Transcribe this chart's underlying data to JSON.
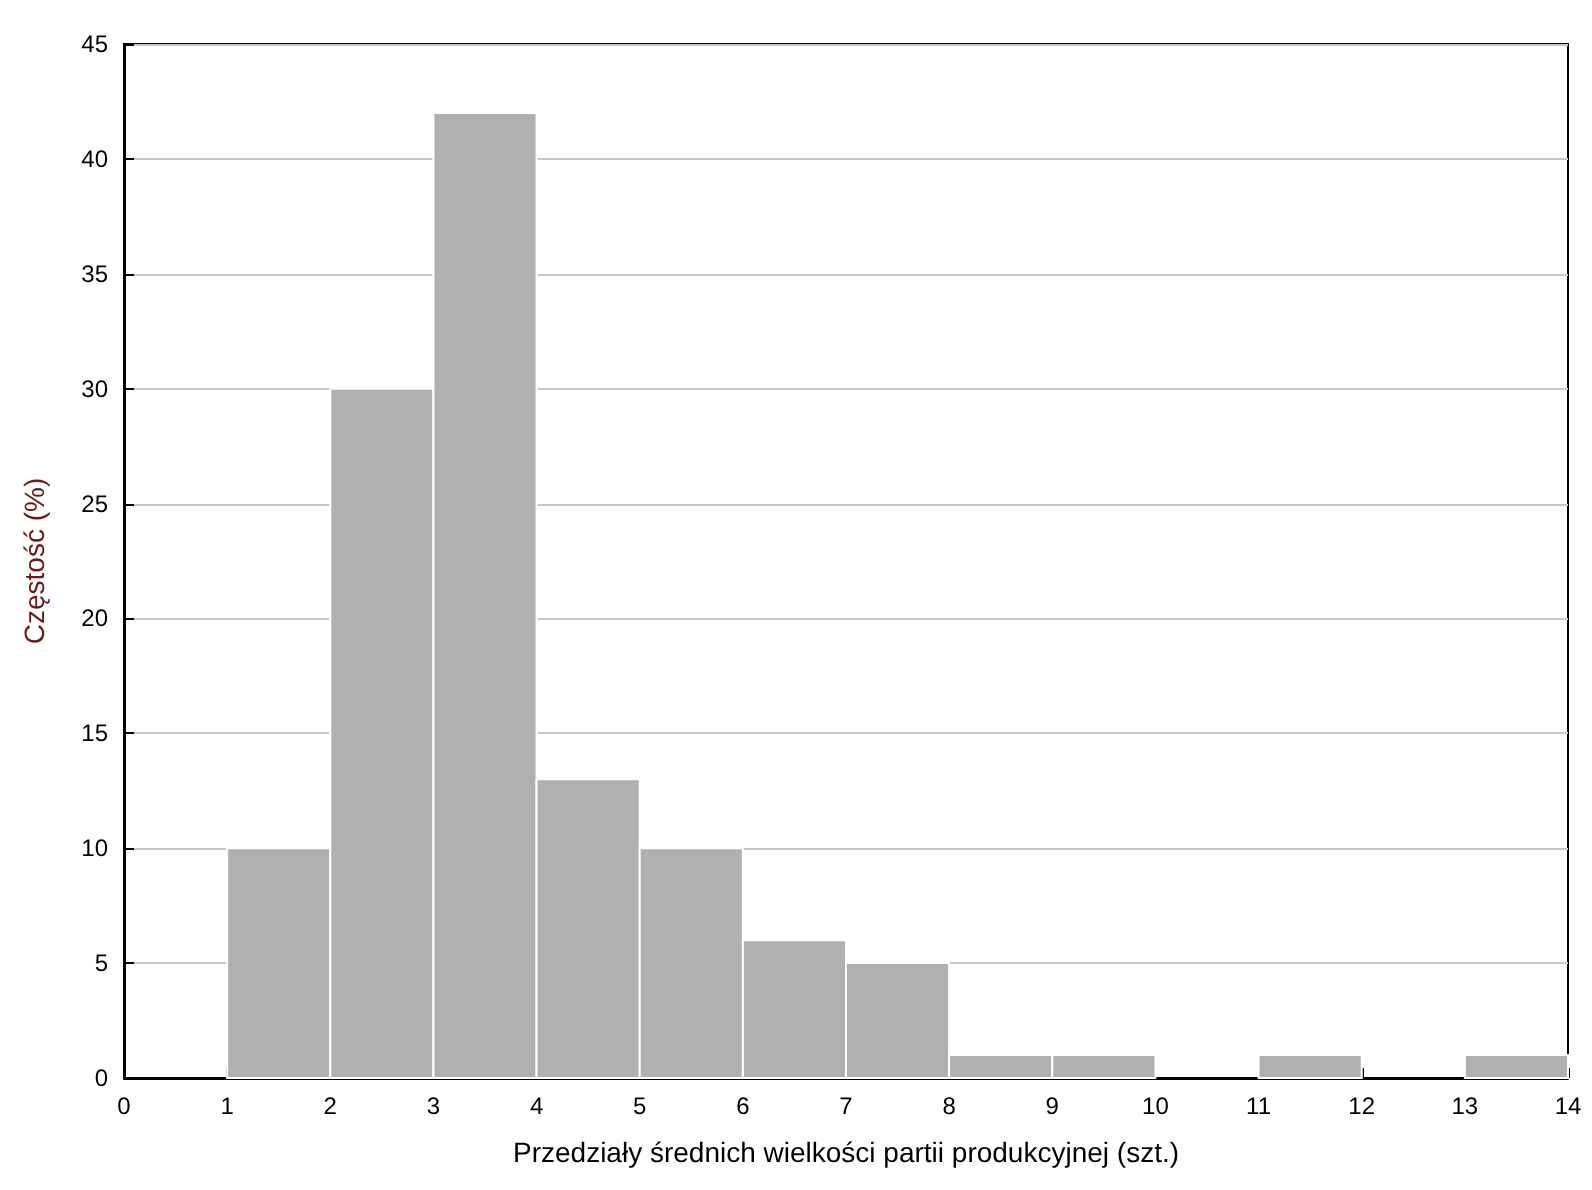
{
  "chart_data": {
    "type": "histogram",
    "xlabel": "Przedziały średnich wielkości partii produkcyjnej (szt.)",
    "ylabel": "Częstość (%)",
    "bins": [
      0,
      1,
      2,
      3,
      4,
      5,
      6,
      7,
      8,
      9,
      10,
      11,
      12,
      13,
      14
    ],
    "values": [
      0,
      10,
      30,
      42,
      13,
      10,
      6,
      5,
      1,
      1,
      0,
      1,
      0,
      1
    ],
    "color": "#b0b0b0",
    "xlim": [
      0,
      14
    ],
    "xticks": [
      0,
      1,
      2,
      3,
      4,
      5,
      6,
      7,
      8,
      9,
      10,
      11,
      12,
      13,
      14
    ],
    "ylim": [
      0,
      45
    ],
    "yticks": [
      0,
      5,
      10,
      15,
      20,
      25,
      30,
      35,
      40,
      45
    ],
    "grid": "y"
  }
}
